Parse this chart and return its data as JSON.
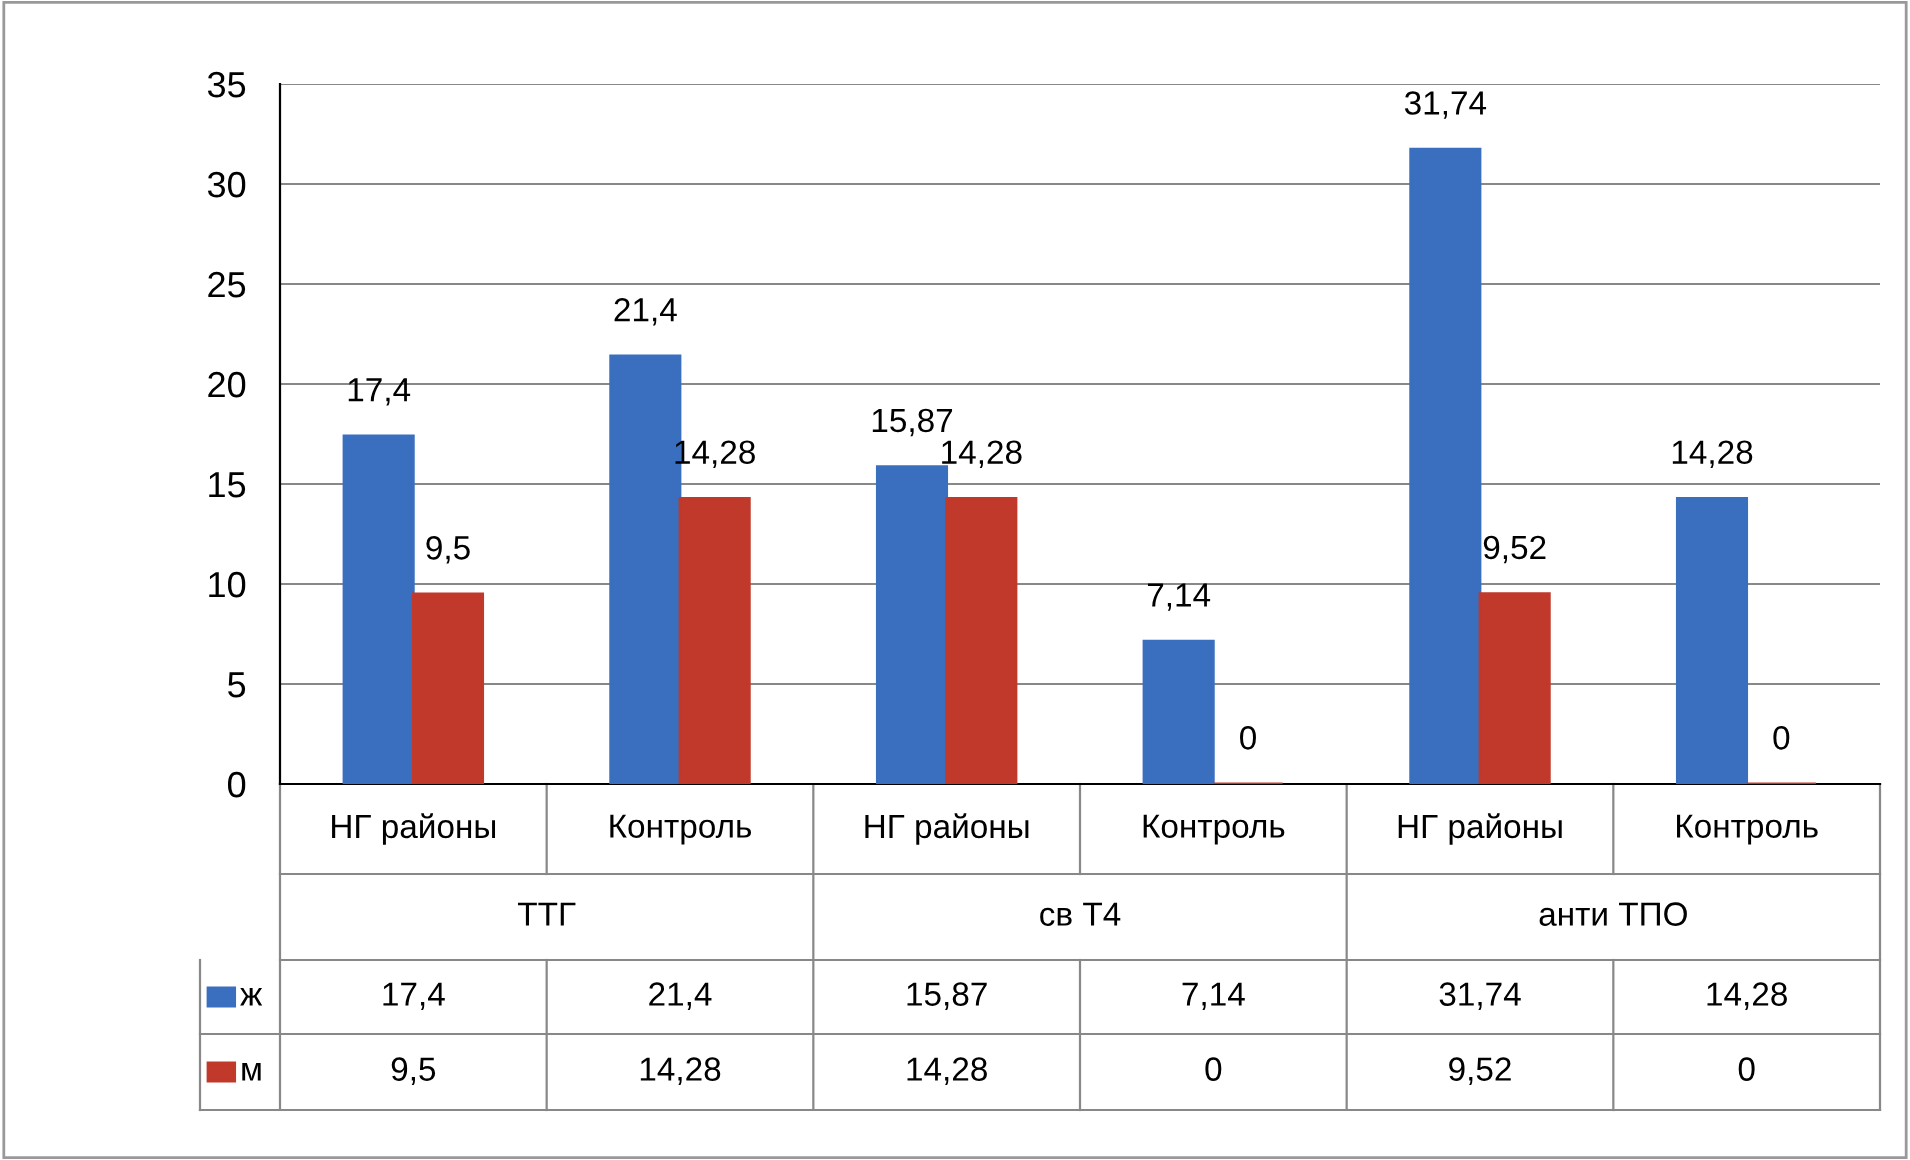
{
  "chart_data": {
    "type": "bar",
    "categories": [
      "НГ районы",
      "Контроль",
      "НГ районы",
      "Контроль",
      "НГ районы",
      "Контроль"
    ],
    "annotations": [
      "ТТГ",
      "св Т4",
      "анти ТПО"
    ],
    "series": [
      {
        "name": "ж",
        "color": "#3a6fbf",
        "values": [
          17.4,
          21.4,
          15.87,
          7.14,
          31.74,
          14.28
        ],
        "value_labels": [
          "17,4",
          "21,4",
          "15,87",
          "7,14",
          "31,74",
          "14,28"
        ]
      },
      {
        "name": "м",
        "color": "#c0392b",
        "values": [
          9.5,
          14.28,
          14.28,
          0,
          9.52,
          0
        ],
        "value_labels": [
          "9,5",
          "14,28",
          "14,28",
          "0",
          "9,52",
          "0"
        ]
      }
    ],
    "ylim": [
      0,
      35
    ],
    "yticks": [
      0,
      5,
      10,
      15,
      20,
      25,
      30,
      35
    ],
    "grid": "y",
    "legend": "bottom"
  }
}
